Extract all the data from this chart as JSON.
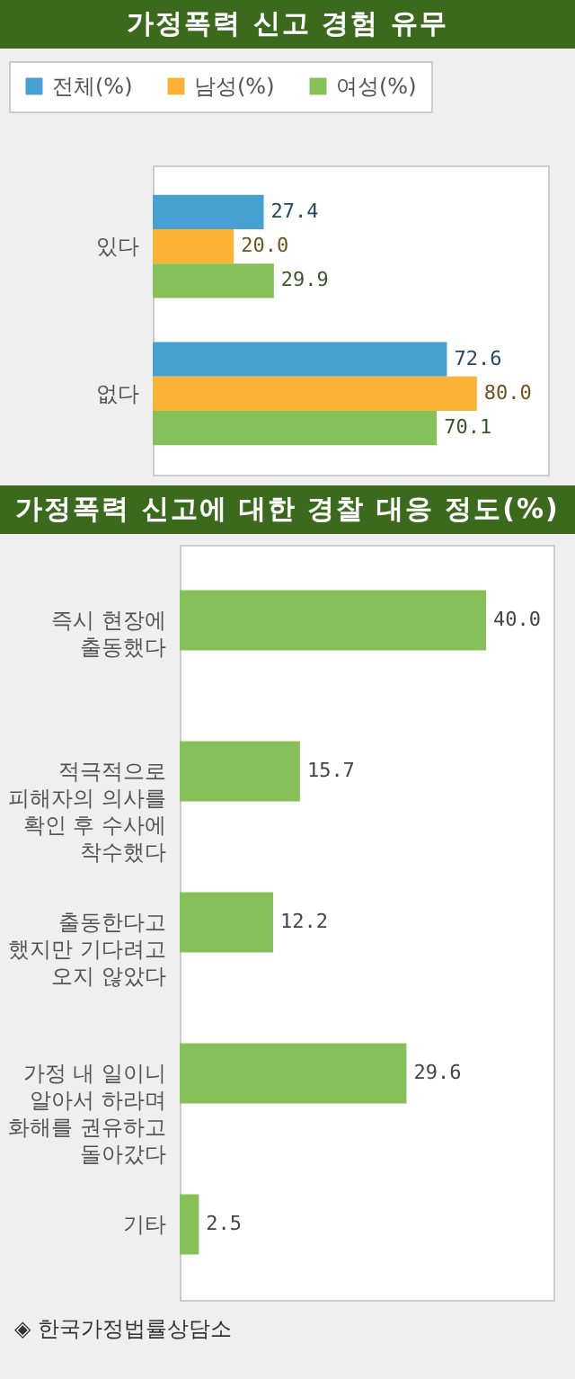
{
  "chart_data": [
    {
      "type": "bar",
      "orientation": "horizontal",
      "title": "가정폭력 신고 경험 유무",
      "categories": [
        "있다",
        "없다"
      ],
      "series": [
        {
          "name": "전체(%)",
          "color": "#47a0d2",
          "values": [
            27.4,
            72.6
          ],
          "value_labels": [
            "27.4",
            "72.6"
          ]
        },
        {
          "name": "남성(%)",
          "color": "#fbb336",
          "values": [
            20.0,
            80.0
          ],
          "value_labels": [
            "20.0",
            "80.0"
          ]
        },
        {
          "name": "여성(%)",
          "color": "#86c058",
          "values": [
            29.9,
            70.1
          ],
          "value_labels": [
            "29.9",
            "70.1"
          ]
        }
      ],
      "legend": "top left"
    },
    {
      "type": "bar",
      "orientation": "horizontal",
      "title": "가정폭력 신고에 대한 경찰 대응 정도(%)",
      "categories": [
        "즉시 현장에\n출동했다",
        "적극적으로\n피해자의 의사를\n확인 후 수사에\n착수했다",
        "출동한다고\n했지만 기다려고\n오지 않았다",
        "가정 내 일이니\n알아서 하라며\n화해를 권유하고\n돌아갔다",
        "기타"
      ],
      "series": [
        {
          "color": "#86c058",
          "values": [
            40.0,
            15.7,
            12.2,
            29.6,
            2.5
          ],
          "value_labels": [
            "40.0",
            "15.7",
            "12.2",
            "29.6",
            "2.5"
          ]
        }
      ],
      "annotations": [
        "◈ 한국가정법률상담소"
      ]
    }
  ]
}
